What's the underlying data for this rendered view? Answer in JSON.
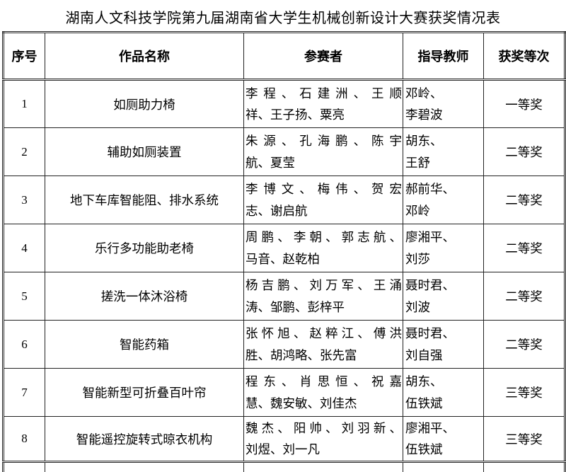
{
  "title": "湖南人文科技学院第九届湖南省大学生机械创新设计大赛获奖情况表",
  "table": {
    "headers": {
      "no": "序号",
      "work": "作品名称",
      "participants": "参赛者",
      "teachers": "指导教师",
      "award": "获奖等次"
    },
    "rows": [
      {
        "no": "1",
        "work": "如厕助力椅",
        "participants": "李程、石建洲、王顺\n祥、王子扬、粟亮",
        "teachers": "邓岭、\n李碧波",
        "award": "一等奖"
      },
      {
        "no": "2",
        "work": "辅助如厕装置",
        "participants": "朱源、孔海鹏、陈宇\n航、夏莹",
        "teachers": "胡东、\n王舒",
        "award": "二等奖"
      },
      {
        "no": "3",
        "work": "地下车库智能阻、排水系统",
        "participants": "李博文、梅伟、贺宏\n志、谢启航",
        "teachers": "郝前华、\n邓岭",
        "award": "二等奖"
      },
      {
        "no": "4",
        "work": "乐行多功能助老椅",
        "participants": "周鹏、李朝、郭志航、\n马音、赵乾柏",
        "teachers": "廖湘平、\n刘莎",
        "award": "二等奖"
      },
      {
        "no": "5",
        "work": "搓洗一体沐浴椅",
        "participants": "杨吉鹏、刘万军、王涌\n涛、邹鹏、彭梓平",
        "teachers": "聂时君、\n刘波",
        "award": "二等奖"
      },
      {
        "no": "6",
        "work": "智能药箱",
        "participants": "张怀旭、赵粹江、傅洪\n胜、胡鸿略、张先富",
        "teachers": "聂时君、\n刘自强",
        "award": "二等奖"
      },
      {
        "no": "7",
        "work": "智能新型可折叠百叶帘",
        "participants": "程东、肖思恒、祝嘉\n慧、魏安敏、刘佳杰",
        "teachers": "胡东、\n伍铁斌",
        "award": "三等奖"
      },
      {
        "no": "8",
        "work": "智能遥控旋转式晾衣机构",
        "participants": "魏杰、阳帅、刘羽新、\n刘煜、刘一凡",
        "teachers": "廖湘平、\n伍铁斌",
        "award": "三等奖"
      }
    ]
  }
}
